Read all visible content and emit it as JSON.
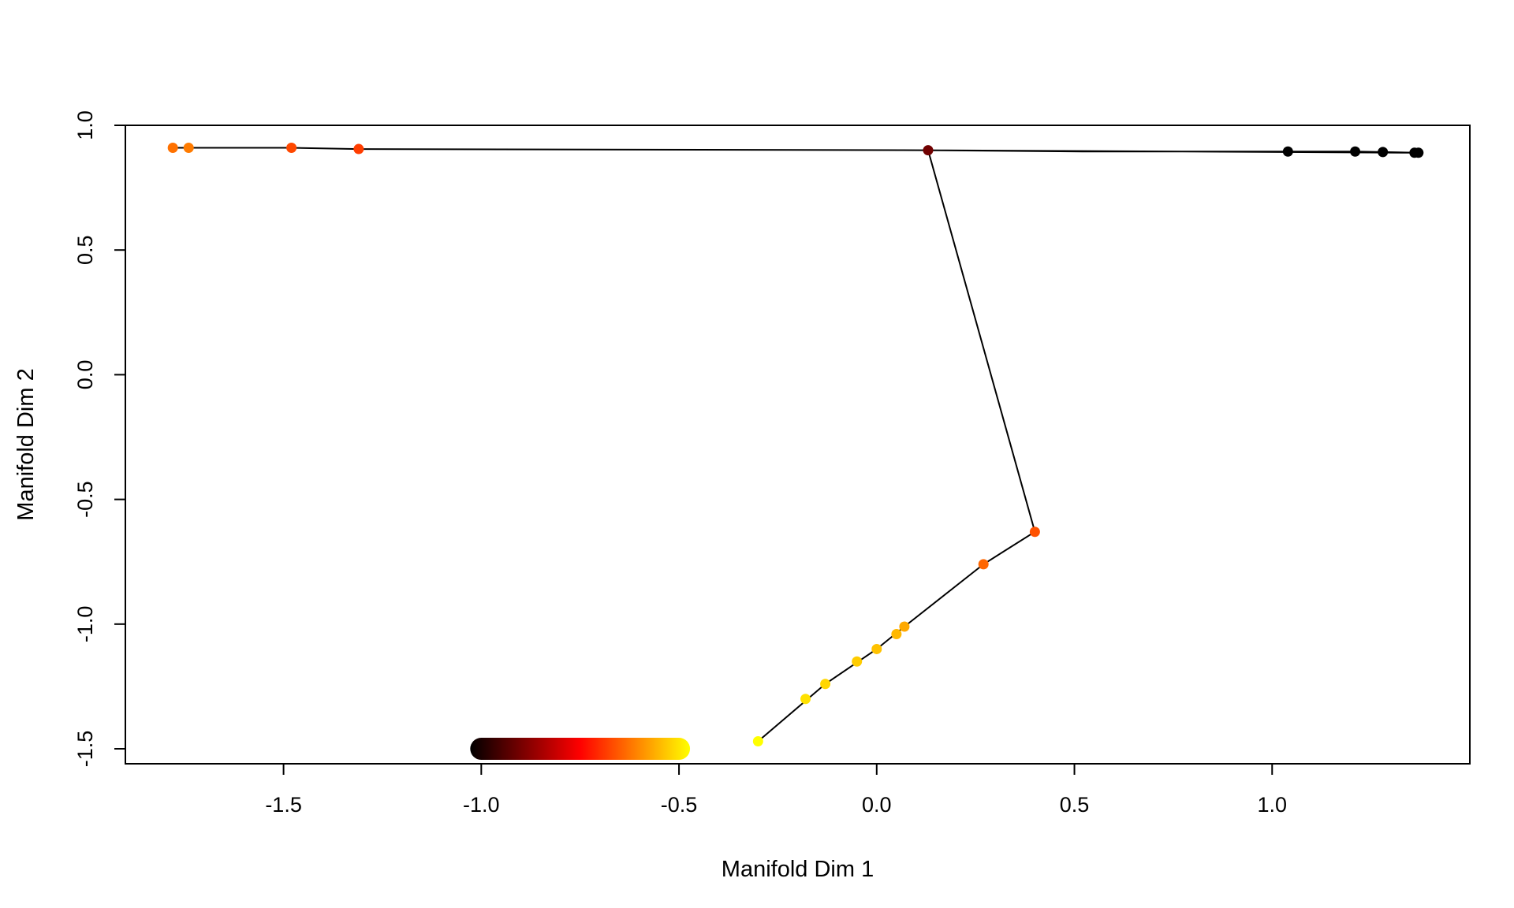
{
  "chart_data": {
    "type": "scatter",
    "title": "",
    "xlabel": "Manifold Dim 1",
    "ylabel": "Manifold Dim 2",
    "xlim": [
      -1.9,
      1.5
    ],
    "ylim": [
      -1.56,
      1.0
    ],
    "xticks": [
      -1.5,
      -1.0,
      -0.5,
      0.0,
      0.5,
      1.0
    ],
    "xtick_labels": [
      "-1.5",
      "-1.0",
      "-0.5",
      "0.0",
      "0.5",
      "1.0"
    ],
    "yticks": [
      -1.5,
      -1.0,
      -0.5,
      0.0,
      0.5,
      1.0
    ],
    "ytick_labels": [
      "-1.5",
      "-1.0",
      "-0.5",
      "0.0",
      "0.5",
      "1.0"
    ],
    "grid": false,
    "legend": "none",
    "colormap": [
      "#000000",
      "#800000",
      "#ff0000",
      "#ff8000",
      "#ffff00"
    ],
    "colorbar": {
      "x0": -1.0,
      "x1": -0.5,
      "y": -1.5
    },
    "points": [
      {
        "x": -1.78,
        "y": 0.91,
        "c": 0.72
      },
      {
        "x": -1.74,
        "y": 0.91,
        "c": 0.74
      },
      {
        "x": -1.48,
        "y": 0.91,
        "c": 0.64
      },
      {
        "x": -1.31,
        "y": 0.905,
        "c": 0.62
      },
      {
        "x": 0.13,
        "y": 0.9,
        "c": 0.22
      },
      {
        "x": 1.04,
        "y": 0.895,
        "c": 0.0
      },
      {
        "x": 1.21,
        "y": 0.895,
        "c": 0.0
      },
      {
        "x": 1.28,
        "y": 0.893,
        "c": 0.0
      },
      {
        "x": 1.36,
        "y": 0.89,
        "c": 0.0
      },
      {
        "x": 1.37,
        "y": 0.89,
        "c": 0.0
      },
      {
        "x": 0.4,
        "y": -0.63,
        "c": 0.66
      },
      {
        "x": 0.27,
        "y": -0.76,
        "c": 0.7
      },
      {
        "x": 0.07,
        "y": -1.01,
        "c": 0.83
      },
      {
        "x": 0.05,
        "y": -1.04,
        "c": 0.86
      },
      {
        "x": 0.0,
        "y": -1.1,
        "c": 0.88
      },
      {
        "x": -0.05,
        "y": -1.15,
        "c": 0.9
      },
      {
        "x": -0.13,
        "y": -1.24,
        "c": 0.92
      },
      {
        "x": -0.18,
        "y": -1.3,
        "c": 0.94
      },
      {
        "x": -0.3,
        "y": -1.47,
        "c": 1.0
      }
    ],
    "curve": [
      [
        -1.78,
        0.91
      ],
      [
        -1.48,
        0.91
      ],
      [
        -1.31,
        0.905
      ],
      [
        0.13,
        0.9
      ],
      [
        0.52,
        0.895
      ],
      [
        1.04,
        0.895
      ],
      [
        1.21,
        0.895
      ],
      [
        1.28,
        0.893
      ],
      [
        1.37,
        0.89
      ],
      [
        1.37,
        0.89
      ],
      [
        0.13,
        0.9
      ],
      [
        0.4,
        -0.63
      ],
      [
        0.27,
        -0.76
      ],
      [
        0.07,
        -1.01
      ],
      [
        0.0,
        -1.1
      ],
      [
        -0.13,
        -1.24
      ],
      [
        -0.3,
        -1.47
      ]
    ]
  }
}
